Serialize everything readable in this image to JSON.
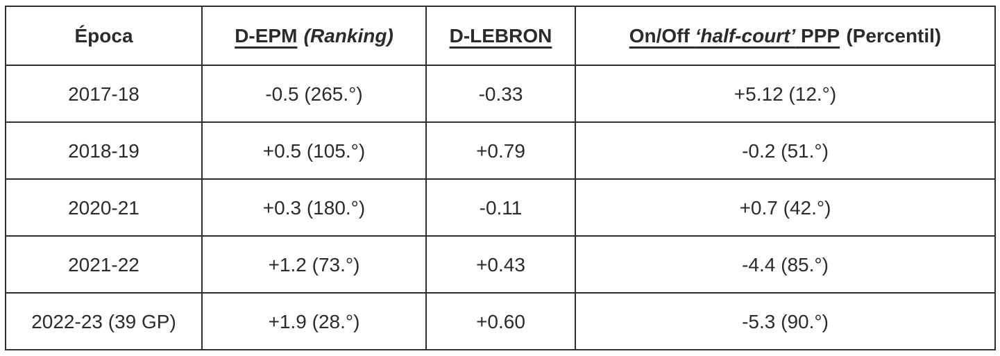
{
  "colors": {
    "border": "#2e2e2e",
    "text": "#2b2b2b",
    "background": "#ffffff"
  },
  "header_segments": {
    "epoca": "Época",
    "depm_underlined": "D-EPM",
    "depm_paren_italic": "(Ranking)",
    "dlebron_underlined": "D-LEBRON",
    "onoff_pre": "On/Off ",
    "onoff_italic": "‘half-court’",
    "onoff_post": " PPP",
    "onoff_paren": "(Percentil)"
  },
  "chart_data": {
    "type": "table",
    "title": "",
    "columns": [
      "Época",
      "D-EPM (Ranking)",
      "D-LEBRON",
      "On/Off ‘half-court’ PPP (Percentil)"
    ],
    "rows": [
      [
        "2017-18",
        "-0.5 (265.°)",
        "-0.33",
        "+5.12 (12.°)"
      ],
      [
        "2018-19",
        "+0.5 (105.°)",
        "+0.79",
        "-0.2 (51.°)"
      ],
      [
        "2020-21",
        "+0.3 (180.°)",
        "-0.11",
        "+0.7 (42.°)"
      ],
      [
        "2021-22",
        "+1.2 (73.°)",
        "+0.43",
        "-4.4 (85.°)"
      ],
      [
        "2022-23 (39 GP)",
        "+1.9 (28.°)",
        "+0.60",
        "-5.3 (90.°)"
      ]
    ]
  }
}
